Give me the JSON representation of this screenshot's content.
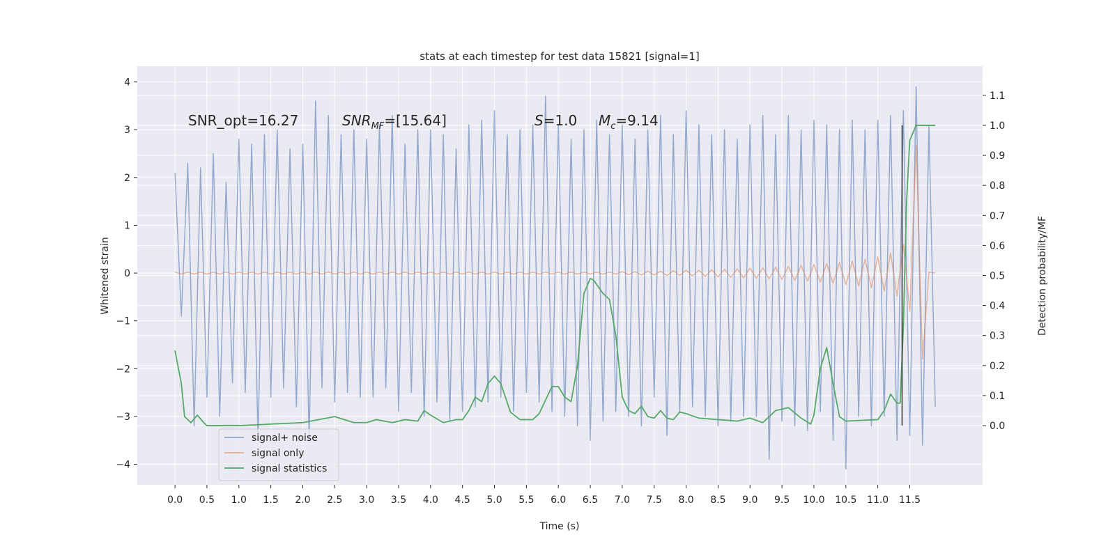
{
  "chart_data": {
    "type": "line",
    "title": "stats at each timestep for test data 15821 [signal=1]",
    "xlabel": "Time (s)",
    "ylabel": "Whitened strain",
    "y2label": "Detection probability/MF",
    "annotations": [
      [
        "SNR_opt=16.27"
      ],
      [
        "SNR",
        "MF",
        "=[15.64]"
      ],
      [
        "S",
        "=1.0"
      ],
      [
        "M",
        "c",
        "=9.14"
      ]
    ],
    "grid": true,
    "legend": "lower left",
    "xlim": [
      -0.59,
      12.64
    ],
    "ylim": [
      -4.43,
      4.33
    ],
    "y2lim": [
      -0.197,
      1.197
    ],
    "xticks": [
      {
        "value": 0,
        "label": "0.0"
      },
      0.5,
      {
        "value": 1,
        "label": "1.0"
      },
      1.5,
      {
        "value": 2,
        "label": "2.0"
      },
      2.5,
      {
        "value": 3,
        "label": "3.0"
      },
      3.5,
      {
        "value": 4,
        "label": "4.0"
      },
      4.5,
      {
        "value": 5,
        "label": "5.0"
      },
      5.5,
      {
        "value": 6,
        "label": "6.0"
      },
      6.5,
      {
        "value": 7,
        "label": "7.0"
      },
      7.5,
      {
        "value": 8,
        "label": "8.0"
      },
      8.5,
      {
        "value": 9,
        "label": "9.0"
      },
      9.5,
      {
        "value": 10,
        "label": "10.0"
      },
      10.5,
      {
        "value": 11,
        "label": "11.0"
      },
      11.5
    ],
    "yticks": [
      {
        "value": -4,
        "label": "−4"
      },
      {
        "value": -3,
        "label": "−3"
      },
      {
        "value": -2,
        "label": "−2"
      },
      {
        "value": -1,
        "label": "−1"
      },
      0,
      1,
      2,
      3,
      4
    ],
    "y2ticks": [
      {
        "value": 0,
        "label": "0.0"
      },
      0.1,
      0.2,
      0.3,
      0.4,
      0.5,
      0.6,
      0.7,
      0.8,
      0.9,
      {
        "value": 1,
        "label": "1.0"
      },
      1.1
    ],
    "x": [
      0.0,
      0.1,
      0.2,
      0.3,
      0.4,
      0.5,
      0.6,
      0.7,
      0.8,
      0.9,
      1.0,
      1.1,
      1.2,
      1.3,
      1.4,
      1.5,
      1.6,
      1.7,
      1.8,
      1.9,
      2.0,
      2.1,
      2.2,
      2.3,
      2.4,
      2.5,
      2.6,
      2.7,
      2.8,
      2.9,
      3.0,
      3.1,
      3.2,
      3.3,
      3.4,
      3.5,
      3.6,
      3.7,
      3.8,
      3.9,
      4.0,
      4.1,
      4.2,
      4.3,
      4.4,
      4.5,
      4.6,
      4.7,
      4.8,
      4.9,
      5.0,
      5.1,
      5.2,
      5.3,
      5.4,
      5.5,
      5.6,
      5.7,
      5.8,
      5.9,
      6.0,
      6.1,
      6.2,
      6.3,
      6.4,
      6.5,
      6.6,
      6.7,
      6.8,
      6.9,
      7.0,
      7.1,
      7.2,
      7.3,
      7.4,
      7.5,
      7.6,
      7.7,
      7.8,
      7.9,
      8.0,
      8.1,
      8.2,
      8.3,
      8.4,
      8.5,
      8.6,
      8.7,
      8.8,
      8.9,
      9.0,
      9.1,
      9.2,
      9.3,
      9.4,
      9.5,
      9.6,
      9.7,
      9.8,
      9.9,
      10.0,
      10.1,
      10.2,
      10.3,
      10.4,
      10.5,
      10.6,
      10.7,
      10.8,
      10.9,
      11.0,
      11.1,
      11.2,
      11.3,
      11.4,
      11.5,
      11.6,
      11.7,
      11.8,
      11.9
    ],
    "series": [
      {
        "name": "signal+ noise",
        "color": "#4c72b0",
        "values": [
          2.1,
          -0.9,
          2.3,
          -3.2,
          2.2,
          -2.6,
          2.5,
          -3.0,
          1.9,
          -2.3,
          2.8,
          -2.5,
          2.7,
          -3.5,
          2.9,
          -2.6,
          3.0,
          -2.4,
          2.6,
          -2.8,
          2.7,
          -3.5,
          3.6,
          -2.4,
          3.3,
          -2.7,
          2.9,
          -2.5,
          3.0,
          -2.6,
          2.8,
          -2.6,
          3.1,
          -2.4,
          3.3,
          -2.9,
          2.7,
          -2.5,
          3.0,
          -3.0,
          3.0,
          -2.7,
          2.9,
          -3.1,
          2.6,
          -2.9,
          3.1,
          -2.8,
          3.2,
          -2.7,
          3.4,
          -2.6,
          2.9,
          -2.9,
          3.0,
          -2.5,
          3.1,
          -2.7,
          3.7,
          -2.9,
          3.1,
          -3.0,
          2.8,
          -3.2,
          3.0,
          -3.5,
          3.2,
          -3.1,
          2.9,
          -2.9,
          3.1,
          -3.0,
          2.8,
          -3.2,
          3.0,
          -2.6,
          3.3,
          -3.4,
          2.9,
          -2.9,
          3.4,
          -2.8,
          3.1,
          -3.0,
          2.9,
          -3.2,
          3.0,
          -3.1,
          2.8,
          -3.0,
          3.1,
          -3.0,
          3.3,
          -3.9,
          2.9,
          -3.1,
          3.3,
          -3.2,
          3.0,
          -3.3,
          3.2,
          -2.9,
          3.1,
          -3.5,
          3.0,
          -4.1,
          3.2,
          -3.0,
          3.0,
          -3.2,
          3.2,
          -3.0,
          3.3,
          -3.5,
          3.4,
          -3.4,
          3.9,
          -3.6,
          3.1,
          -2.8
        ]
      },
      {
        "name": "signal only",
        "color": "#dd8452",
        "values": [
          0.02,
          -0.02,
          0.02,
          -0.02,
          0.02,
          -0.02,
          0.02,
          -0.02,
          0.02,
          -0.02,
          0.02,
          -0.02,
          0.02,
          -0.02,
          0.02,
          -0.02,
          0.02,
          -0.02,
          0.02,
          -0.02,
          0.02,
          -0.02,
          0.02,
          -0.02,
          0.02,
          -0.02,
          0.02,
          -0.02,
          0.02,
          -0.02,
          0.02,
          -0.02,
          0.02,
          -0.02,
          0.02,
          -0.02,
          0.02,
          -0.02,
          0.02,
          -0.02,
          0.02,
          -0.02,
          0.02,
          -0.02,
          0.02,
          -0.02,
          0.02,
          -0.02,
          0.02,
          -0.02,
          0.02,
          -0.02,
          0.02,
          -0.02,
          0.02,
          -0.02,
          0.02,
          -0.02,
          0.02,
          -0.02,
          0.02,
          -0.02,
          0.02,
          -0.02,
          0.02,
          -0.02,
          0.02,
          -0.02,
          0.02,
          -0.02,
          0.03,
          -0.03,
          0.03,
          -0.04,
          0.04,
          -0.04,
          0.04,
          -0.05,
          0.05,
          -0.05,
          0.06,
          -0.06,
          0.06,
          -0.07,
          0.07,
          -0.08,
          0.08,
          -0.09,
          0.09,
          -0.1,
          0.1,
          -0.11,
          0.11,
          -0.12,
          0.12,
          -0.13,
          0.14,
          -0.15,
          0.16,
          -0.17,
          0.18,
          -0.19,
          0.2,
          -0.21,
          0.22,
          -0.24,
          0.25,
          -0.27,
          0.29,
          -0.31,
          0.34,
          -0.38,
          0.42,
          -0.48,
          0.6,
          -0.8,
          2.67,
          -1.8,
          0.02,
          0.0
        ]
      },
      {
        "name": "signal statistics",
        "color": "#55a868",
        "axis": "y2",
        "x": [
          0.0,
          0.1,
          0.15,
          0.25,
          0.35,
          0.45,
          0.5,
          1.0,
          1.5,
          2.0,
          2.5,
          2.8,
          3.0,
          3.15,
          3.4,
          3.6,
          3.8,
          3.9,
          4.0,
          4.2,
          4.4,
          4.5,
          4.6,
          4.7,
          4.8,
          4.9,
          5.0,
          5.1,
          5.25,
          5.4,
          5.6,
          5.7,
          5.8,
          5.9,
          6.0,
          6.1,
          6.2,
          6.3,
          6.4,
          6.5,
          6.55,
          6.7,
          6.8,
          6.9,
          7.0,
          7.1,
          7.2,
          7.3,
          7.4,
          7.5,
          7.6,
          7.7,
          7.8,
          7.9,
          8.0,
          8.2,
          8.5,
          8.8,
          9.0,
          9.2,
          9.4,
          9.6,
          9.8,
          9.95,
          10.0,
          10.1,
          10.2,
          10.3,
          10.4,
          10.5,
          11.0,
          11.1,
          11.2,
          11.3,
          11.35,
          11.4,
          11.45,
          11.5,
          11.6,
          11.9
        ],
        "values": [
          0.25,
          0.14,
          0.03,
          0.01,
          0.035,
          0.01,
          0.0,
          0.0,
          0.005,
          0.01,
          0.03,
          0.01,
          0.01,
          0.02,
          0.01,
          0.02,
          0.015,
          0.05,
          0.035,
          0.01,
          0.02,
          0.02,
          0.05,
          0.095,
          0.08,
          0.14,
          0.165,
          0.14,
          0.045,
          0.02,
          0.02,
          0.04,
          0.085,
          0.13,
          0.13,
          0.095,
          0.08,
          0.2,
          0.44,
          0.49,
          0.485,
          0.44,
          0.42,
          0.3,
          0.095,
          0.05,
          0.04,
          0.065,
          0.03,
          0.025,
          0.05,
          0.025,
          0.02,
          0.045,
          0.04,
          0.025,
          0.02,
          0.015,
          0.025,
          0.01,
          0.05,
          0.06,
          0.025,
          0.005,
          0.035,
          0.19,
          0.26,
          0.14,
          0.03,
          0.015,
          0.02,
          0.05,
          0.105,
          0.075,
          0.075,
          0.33,
          0.745,
          0.95,
          1.0,
          1.0
        ]
      },
      {
        "color": "#333333",
        "axis": "y2",
        "x": [
          11.38,
          11.38
        ],
        "values": [
          0,
          1
        ]
      }
    ]
  }
}
